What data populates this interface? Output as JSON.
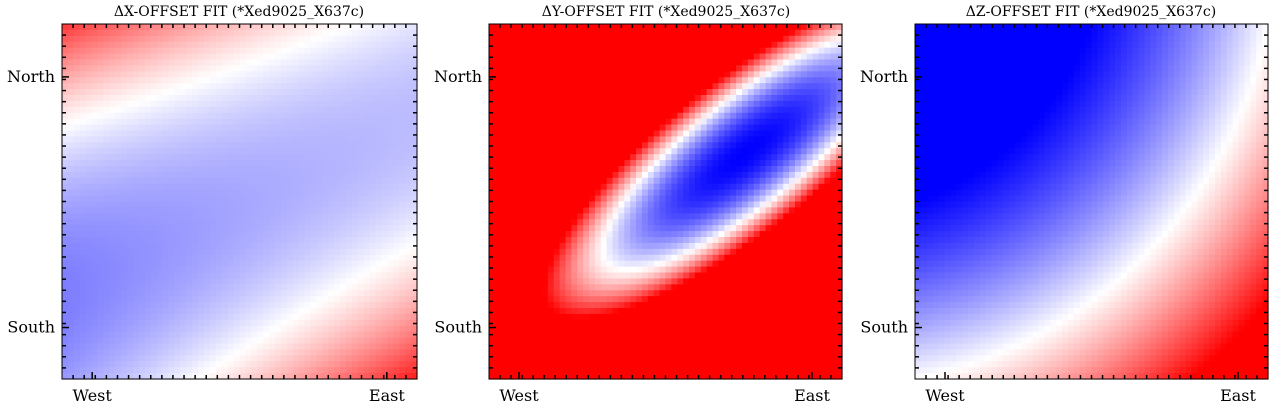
{
  "chart_data": [
    {
      "type": "heatmap",
      "title": "ΔX-OFFSET FIT (*Xed9025_X637c)",
      "x_tick_labels": [
        "West",
        "East"
      ],
      "y_tick_labels": [
        "North",
        "South"
      ],
      "colormap": "bwr",
      "colors": {
        "low": "#0000ff",
        "mid": "#ffffff",
        "high": "#ff0000"
      },
      "value_range": [
        -1,
        1
      ],
      "grid": false,
      "surface": "quadratic",
      "coefficients": {
        "c0": -0.35,
        "cx": 0.1,
        "cy": 0.05,
        "cxx": 0.1,
        "cyy": 0.55,
        "cxy": -0.55
      }
    },
    {
      "type": "heatmap",
      "title": "ΔY-OFFSET FIT (*Xed9025_X637c)",
      "x_tick_labels": [
        "West",
        "East"
      ],
      "y_tick_labels": [
        "North",
        "South"
      ],
      "colormap": "bwr",
      "colors": {
        "low": "#0000ff",
        "mid": "#ffffff",
        "high": "#ff0000"
      },
      "value_range": [
        -1,
        1
      ],
      "grid": false,
      "surface": "ellipse",
      "coefficients": {
        "center": [
          0.45,
          0.27
        ],
        "a": 1.0,
        "b": 0.3,
        "angle_deg": 38,
        "floor": -1,
        "scale": 2.9
      }
    },
    {
      "type": "heatmap",
      "title": "ΔZ-OFFSET FIT (*Xed9025_X637c)",
      "x_tick_labels": [
        "West",
        "East"
      ],
      "y_tick_labels": [
        "North",
        "South"
      ],
      "colormap": "bwr",
      "colors": {
        "low": "#0000ff",
        "mid": "#ffffff",
        "high": "#ff0000"
      },
      "value_range": [
        -1,
        1
      ],
      "grid": false,
      "surface": "quadratic",
      "coefficients": {
        "c0": -0.5,
        "cx": 0.75,
        "cy": -0.75,
        "cxx": 0.25,
        "cyy": 0.25,
        "cxy": 0
      }
    }
  ]
}
